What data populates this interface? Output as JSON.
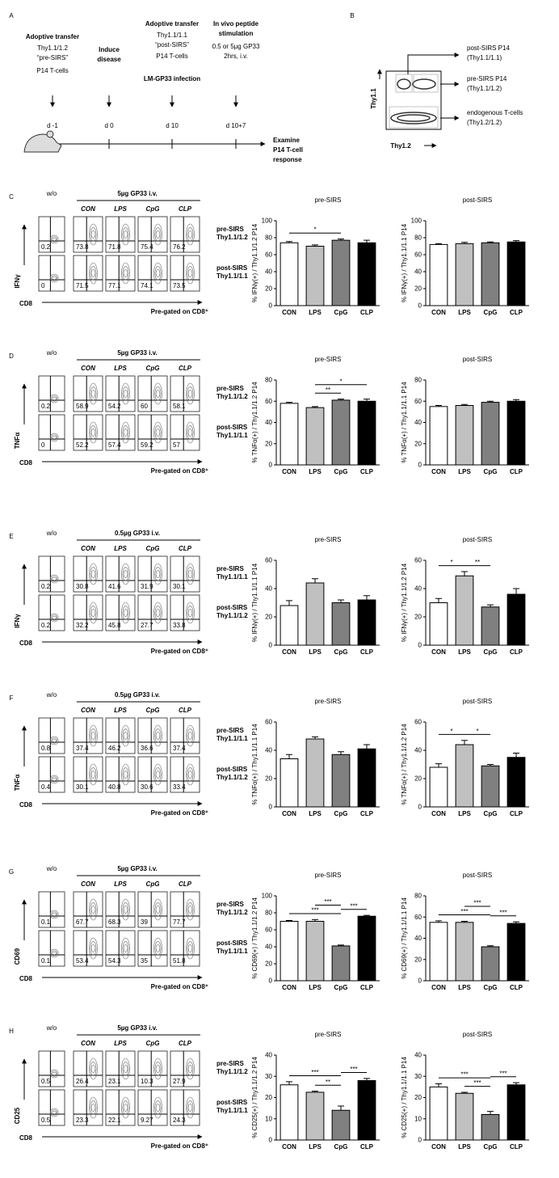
{
  "panel_a": {
    "label": "A",
    "steps": [
      [
        "Adoptive transfer",
        "Thy1.1/1.2",
        "“pre-SIRS”",
        "P14 T-cells"
      ],
      [
        "Induce",
        "disease"
      ],
      [
        "Adoptive transfer",
        "Thy1.1/1.1",
        "“post-SIRS”",
        "P14 T-cells",
        "LM-GP33 infection"
      ],
      [
        "In vivo peptide",
        "stimulation",
        "0.5 or 5µg GP33",
        "2hrs, i.v."
      ]
    ],
    "days": [
      "d -1",
      "d 0",
      "d 10",
      "d 10+7"
    ],
    "readout": [
      "Examine",
      "P14 T-cell",
      "response"
    ]
  },
  "panel_b": {
    "label": "B",
    "y_axis": "Thy1.1",
    "x_axis": "Thy1.2",
    "gates": [
      [
        "post-SIRS P14",
        "(Thy1.1/1.1)"
      ],
      [
        "pre-SIRS P14",
        "(Thy1.1/1.2)"
      ],
      [
        "endogenous T-cells",
        "(Thy1.2/1.2)"
      ]
    ]
  },
  "flow_panels": [
    {
      "label": "C",
      "marker": "IFNγ",
      "control": "w/o",
      "dose": "5µg GP33 i.v.",
      "conditions": [
        "CON",
        "LPS",
        "CpG",
        "CLP"
      ],
      "rows": [
        {
          "label": [
            "pre-SIRS",
            "Thy1.1/1.2"
          ],
          "control_value": 0.2,
          "values": [
            73.8,
            71.8,
            75.4,
            76.2
          ]
        },
        {
          "label": [
            "post-SIRS",
            "Thy1.1/1.1"
          ],
          "control_value": 0,
          "values": [
            71.5,
            77.1,
            74.1,
            73.5
          ]
        }
      ],
      "x_axis": "CD8",
      "note": "Pre-gated on CD8⁺"
    },
    {
      "label": "D",
      "marker": "TNFα",
      "control": "w/o",
      "dose": "5µg GP33 i.v.",
      "conditions": [
        "CON",
        "LPS",
        "CpG",
        "CLP"
      ],
      "rows": [
        {
          "label": [
            "pre-SIRS",
            "Thy1.1/1.2"
          ],
          "control_value": 0.2,
          "values": [
            58.9,
            54.2,
            60,
            58.1
          ]
        },
        {
          "label": [
            "post-SIRS",
            "Thy1.1/1.1"
          ],
          "control_value": 0,
          "values": [
            52.2,
            57.4,
            59.2,
            57
          ]
        }
      ],
      "x_axis": "CD8",
      "note": "Pre-gated on CD8⁺"
    },
    {
      "label": "E",
      "marker": "IFNγ",
      "control": "w/o",
      "dose": "0.5µg GP33 i.v.",
      "conditions": [
        "CON",
        "LPS",
        "CpG",
        "CLP"
      ],
      "rows": [
        {
          "label": [
            "pre-SIRS",
            "Thy1.1/1.1"
          ],
          "control_value": 0.2,
          "values": [
            30.8,
            41.6,
            31.9,
            30.1
          ]
        },
        {
          "label": [
            "post-SIRS",
            "Thy1.1/1.2"
          ],
          "control_value": 0.2,
          "values": [
            32.2,
            45.8,
            27.7,
            33.8
          ]
        }
      ],
      "x_axis": "CD8",
      "note": "Pre-gated on CD8⁺"
    },
    {
      "label": "F",
      "marker": "TNFα",
      "control": "w/o",
      "dose": "0.5µg GP33 i.v.",
      "conditions": [
        "CON",
        "LPS",
        "CpG",
        "CLP"
      ],
      "rows": [
        {
          "label": [
            "pre-SIRS",
            "Thy1.1/1.1"
          ],
          "control_value": 0.8,
          "values": [
            37.4,
            46.2,
            36.6,
            37.4
          ]
        },
        {
          "label": [
            "post-SIRS",
            "Thy1.1/1.2"
          ],
          "control_value": 0.4,
          "values": [
            30.1,
            40.8,
            30.6,
            33.4
          ]
        }
      ],
      "x_axis": "CD8",
      "note": "Pre-gated on CD8⁺"
    },
    {
      "label": "G",
      "marker": "CD69",
      "control": "w/o",
      "dose": "5µg GP33 i.v.",
      "conditions": [
        "CON",
        "LPS",
        "CpG",
        "CLP"
      ],
      "rows": [
        {
          "label": [
            "pre-SIRS",
            "Thy1.1/1.2"
          ],
          "control_value": 0.1,
          "values": [
            67.7,
            68.3,
            39,
            77.7
          ]
        },
        {
          "label": [
            "post-SIRS",
            "Thy1.1/1.1"
          ],
          "control_value": 0.1,
          "values": [
            53.4,
            54.3,
            35,
            51.8
          ]
        }
      ],
      "x_axis": "CD8",
      "note": "Pre-gated on CD8⁺"
    },
    {
      "label": "H",
      "marker": "CD25",
      "control": "w/o",
      "dose": "5µg GP33 i.v.",
      "conditions": [
        "CON",
        "LPS",
        "CpG",
        "CLP"
      ],
      "rows": [
        {
          "label": [
            "pre-SIRS",
            "Thy1.1/1.2"
          ],
          "control_value": 0.5,
          "values": [
            26.4,
            23.1,
            10.3,
            27.9
          ]
        },
        {
          "label": [
            "post-SIRS",
            "Thy1.1/1.1"
          ],
          "control_value": 0.5,
          "values": [
            23.3,
            22.1,
            9.27,
            24.3
          ]
        }
      ],
      "x_axis": "CD8",
      "note": "Pre-gated on CD8⁺"
    }
  ],
  "chart_data": [
    {
      "type": "bar",
      "title": "pre-SIRS",
      "y_label": "% IFNγ(+) / Thy1.1/1.2 P14",
      "categories": [
        "CON",
        "LPS",
        "CpG",
        "CLP"
      ],
      "values": [
        74,
        70,
        77,
        74
      ],
      "errors": [
        1.5,
        1.5,
        1.5,
        3
      ],
      "colors": [
        "#ffffff",
        "#c0c0c0",
        "#808080",
        "#000000"
      ],
      "ylim": [
        0,
        100
      ],
      "yticks": [
        0,
        20,
        40,
        60,
        80,
        100
      ],
      "significance": [
        {
          "pair": [
            "CON",
            "CpG"
          ],
          "label": "*"
        }
      ]
    },
    {
      "type": "bar",
      "title": "post-SIRS",
      "y_label": "% IFNγ(+) / Thy1.1/1.1 P14",
      "categories": [
        "CON",
        "LPS",
        "CpG",
        "CLP"
      ],
      "values": [
        72,
        73,
        74,
        75
      ],
      "errors": [
        1,
        1.5,
        1,
        1.5
      ],
      "colors": [
        "#ffffff",
        "#c0c0c0",
        "#808080",
        "#000000"
      ],
      "ylim": [
        0,
        100
      ],
      "yticks": [
        0,
        20,
        40,
        60,
        80,
        100
      ],
      "significance": []
    },
    {
      "type": "bar",
      "title": "pre-SIRS",
      "y_label": "% TNFα(+) / Thy1.1/1.2 P14",
      "categories": [
        "CON",
        "LPS",
        "CpG",
        "CLP"
      ],
      "values": [
        58,
        54,
        61,
        60
      ],
      "errors": [
        1,
        1,
        1,
        2
      ],
      "colors": [
        "#ffffff",
        "#c0c0c0",
        "#808080",
        "#000000"
      ],
      "ylim": [
        0,
        80
      ],
      "yticks": [
        0,
        20,
        40,
        60,
        80
      ],
      "significance": [
        {
          "pair": [
            "LPS",
            "CpG"
          ],
          "label": "**"
        },
        {
          "pair": [
            "LPS",
            "CLP"
          ],
          "label": "*"
        }
      ]
    },
    {
      "type": "bar",
      "title": "post-SIRS",
      "y_label": "% TNFα(+) / Thy1.1/1.1 P14",
      "categories": [
        "CON",
        "LPS",
        "CpG",
        "CLP"
      ],
      "values": [
        55,
        56,
        59,
        60
      ],
      "errors": [
        1,
        1,
        1,
        1.5
      ],
      "colors": [
        "#ffffff",
        "#c0c0c0",
        "#808080",
        "#000000"
      ],
      "ylim": [
        0,
        80
      ],
      "yticks": [
        0,
        20,
        40,
        60,
        80
      ],
      "significance": []
    },
    {
      "type": "bar",
      "title": "pre-SIRS",
      "y_label": "% IFNγ(+) / Thy1.1/1.1 P14",
      "categories": [
        "CON",
        "LPS",
        "CpG",
        "CLP"
      ],
      "values": [
        28,
        44,
        30,
        32
      ],
      "errors": [
        3.5,
        3,
        2,
        3
      ],
      "colors": [
        "#ffffff",
        "#c0c0c0",
        "#808080",
        "#000000"
      ],
      "ylim": [
        0,
        60
      ],
      "yticks": [
        0,
        20,
        40,
        60
      ],
      "significance": []
    },
    {
      "type": "bar",
      "title": "post-SIRS",
      "y_label": "% IFNγ(+) / Thy1.1/1.2 P14",
      "categories": [
        "CON",
        "LPS",
        "CpG",
        "CLP"
      ],
      "values": [
        30,
        49,
        27,
        36
      ],
      "errors": [
        3,
        3,
        1.5,
        4
      ],
      "colors": [
        "#ffffff",
        "#c0c0c0",
        "#808080",
        "#000000"
      ],
      "ylim": [
        0,
        60
      ],
      "yticks": [
        0,
        20,
        40,
        60
      ],
      "significance": [
        {
          "pair": [
            "CON",
            "LPS"
          ],
          "label": "*"
        },
        {
          "pair": [
            "LPS",
            "CpG"
          ],
          "label": "**"
        }
      ]
    },
    {
      "type": "bar",
      "title": "pre-SIRS",
      "y_label": "% TNFα(+) / Thy1.1/1.1 P14",
      "categories": [
        "CON",
        "LPS",
        "CpG",
        "CLP"
      ],
      "values": [
        34,
        48,
        37,
        41
      ],
      "errors": [
        3,
        1.5,
        2,
        3
      ],
      "colors": [
        "#ffffff",
        "#c0c0c0",
        "#808080",
        "#000000"
      ],
      "ylim": [
        0,
        60
      ],
      "yticks": [
        0,
        20,
        40,
        60
      ],
      "significance": []
    },
    {
      "type": "bar",
      "title": "post-SIRS",
      "y_label": "% TNFα(+) / Thy1.1/1.2 P14",
      "categories": [
        "CON",
        "LPS",
        "CpG",
        "CLP"
      ],
      "values": [
        28,
        44,
        29,
        35
      ],
      "errors": [
        2.5,
        3,
        1,
        3
      ],
      "colors": [
        "#ffffff",
        "#c0c0c0",
        "#808080",
        "#000000"
      ],
      "ylim": [
        0,
        60
      ],
      "yticks": [
        0,
        20,
        40,
        60
      ],
      "significance": [
        {
          "pair": [
            "CON",
            "LPS"
          ],
          "label": "*"
        },
        {
          "pair": [
            "LPS",
            "CpG"
          ],
          "label": "*"
        }
      ]
    },
    {
      "type": "bar",
      "title": "pre-SIRS",
      "y_label": "% CD69(+) / Thy1.1/1.2 P14",
      "categories": [
        "CON",
        "LPS",
        "CpG",
        "CLP"
      ],
      "values": [
        70,
        70,
        41,
        76
      ],
      "errors": [
        1,
        2,
        1,
        1
      ],
      "colors": [
        "#ffffff",
        "#c0c0c0",
        "#808080",
        "#000000"
      ],
      "ylim": [
        0,
        100
      ],
      "yticks": [
        0,
        20,
        40,
        60,
        80,
        100
      ],
      "significance": [
        {
          "pair": [
            "CON",
            "CpG"
          ],
          "label": "***"
        },
        {
          "pair": [
            "LPS",
            "CpG"
          ],
          "label": "***"
        },
        {
          "pair": [
            "CpG",
            "CLP"
          ],
          "label": "***"
        }
      ]
    },
    {
      "type": "bar",
      "title": "post-SIRS",
      "y_label": "% CD69(+) / Thy1.1/1.1 P14",
      "categories": [
        "CON",
        "LPS",
        "CpG",
        "CLP"
      ],
      "values": [
        55,
        55,
        32,
        54
      ],
      "errors": [
        1.5,
        1,
        1,
        1.5
      ],
      "colors": [
        "#ffffff",
        "#c0c0c0",
        "#808080",
        "#000000"
      ],
      "ylim": [
        0,
        80
      ],
      "yticks": [
        0,
        20,
        40,
        60,
        80
      ],
      "significance": [
        {
          "pair": [
            "CON",
            "CpG"
          ],
          "label": "***"
        },
        {
          "pair": [
            "LPS",
            "CpG"
          ],
          "label": "***"
        },
        {
          "pair": [
            "CpG",
            "CLP"
          ],
          "label": "***"
        }
      ]
    },
    {
      "type": "bar",
      "title": "pre-SIRS",
      "y_label": "% CD25(+) / Thy1.1/1.2 P14",
      "categories": [
        "CON",
        "LPS",
        "CpG",
        "CLP"
      ],
      "values": [
        26,
        22.5,
        14,
        28
      ],
      "errors": [
        1.5,
        0.5,
        2,
        1
      ],
      "colors": [
        "#ffffff",
        "#c0c0c0",
        "#808080",
        "#000000"
      ],
      "ylim": [
        0,
        40
      ],
      "yticks": [
        0,
        10,
        20,
        30,
        40
      ],
      "significance": [
        {
          "pair": [
            "CON",
            "CpG"
          ],
          "label": "***"
        },
        {
          "pair": [
            "LPS",
            "CpG"
          ],
          "label": "**"
        },
        {
          "pair": [
            "CpG",
            "CLP"
          ],
          "label": "***"
        }
      ]
    },
    {
      "type": "bar",
      "title": "post-SIRS",
      "y_label": "% CD25(+) / Thy1.1/1.1 P14",
      "categories": [
        "CON",
        "LPS",
        "CpG",
        "CLP"
      ],
      "values": [
        25,
        22,
        12,
        26
      ],
      "errors": [
        1.5,
        0.5,
        1.5,
        1
      ],
      "colors": [
        "#ffffff",
        "#c0c0c0",
        "#808080",
        "#000000"
      ],
      "ylim": [
        0,
        40
      ],
      "yticks": [
        0,
        10,
        20,
        30,
        40
      ],
      "significance": [
        {
          "pair": [
            "CON",
            "CpG"
          ],
          "label": "***"
        },
        {
          "pair": [
            "LPS",
            "CpG"
          ],
          "label": "***"
        },
        {
          "pair": [
            "CpG",
            "CLP"
          ],
          "label": "***"
        }
      ]
    }
  ]
}
